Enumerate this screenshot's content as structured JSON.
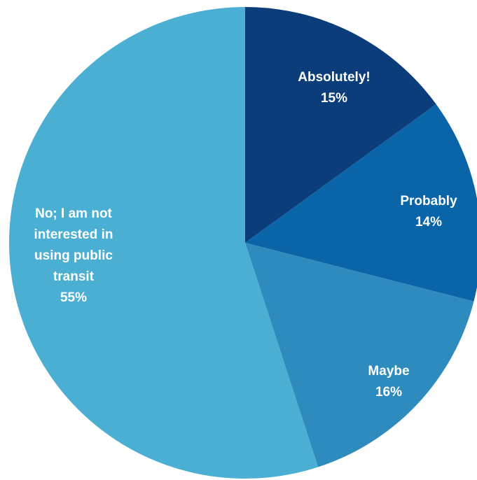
{
  "chart_data": {
    "type": "pie",
    "title": "",
    "start_angle_deg": 0,
    "direction": "clockwise",
    "slices": [
      {
        "lines": [
          "Absolutely!"
        ],
        "value": 15,
        "value_label": "15%",
        "color": "#0b3d7a"
      },
      {
        "lines": [
          "Probably"
        ],
        "value": 14,
        "value_label": "14%",
        "color": "#0a64a8"
      },
      {
        "lines": [
          "Maybe"
        ],
        "value": 16,
        "value_label": "16%",
        "color": "#2e8bbd"
      },
      {
        "lines": [
          "No; I am not",
          "interested in",
          "using public",
          "transit"
        ],
        "value": 55,
        "value_label": "55%",
        "color": "#4aafd3"
      }
    ]
  }
}
